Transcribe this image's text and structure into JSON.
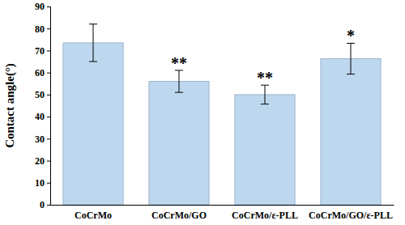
{
  "chart_data": {
    "type": "bar",
    "y_label": "Contact angle(°)",
    "categories": [
      "CoCrMo",
      "CoCrMo/GO",
      "CoCrMo/ε-PLL",
      "CoCrMo/GO/ε-PLL"
    ],
    "values": [
      73.5,
      56,
      50,
      66.3
    ],
    "errors": [
      8.5,
      5,
      4.3,
      7
    ],
    "annotations": [
      null,
      "**",
      "**",
      "*"
    ],
    "color": "#bdd7ee",
    "ylim": [
      0,
      90
    ],
    "yticks": [
      0,
      10,
      20,
      30,
      40,
      50,
      60,
      70,
      80,
      90
    ],
    "grid": false
  }
}
